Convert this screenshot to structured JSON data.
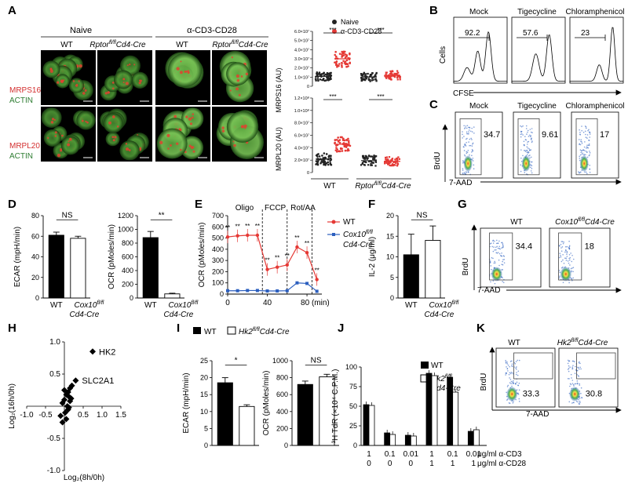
{
  "panels": {
    "A": {
      "label": "A",
      "group_naive": "Naive",
      "group_stim": "α-CD3-CD28",
      "col_wt": "WT",
      "col_rptor": "Rptor",
      "col_rptor_sup": "fl/fl",
      "col_rptor_suffix": "Cd4-Cre",
      "row1_top": "MRPS16",
      "row1_bottom": "ACTIN",
      "row2_top": "MRPL20",
      "row2_bottom": "ACTIN",
      "legend_naive": "Naive",
      "legend_stim": "α-CD3-CD28",
      "ylabel_top": "MRPS16 (AU)",
      "ylabel_bottom": "MRPL20 (AU)",
      "yticks_top": [
        "0",
        "1.0×10⁷",
        "2.0×10⁷",
        "3.0×10⁷",
        "4.0×10⁷",
        "5.0×10⁷",
        "6.0×10⁷"
      ],
      "yticks_bottom": [
        "0",
        "2.0×10⁷",
        "4.0×10⁷",
        "6.0×10⁷",
        "8.0×10⁷",
        "1.0×10⁸",
        "1.2×10⁸"
      ],
      "sig": "***",
      "x_wt": "WT",
      "x_rptor": "Rptor",
      "x_rptor_sup": "fl/fl",
      "x_rptor_suffix": "Cd4-Cre"
    },
    "B": {
      "label": "B",
      "titles": [
        "Mock",
        "Tigecycline",
        "Chloramphenicol"
      ],
      "values": [
        "92.2",
        "57.6",
        "23"
      ],
      "ylabel": "Cells",
      "xlabel": "CFSE"
    },
    "C": {
      "label": "C",
      "titles": [
        "Mock",
        "Tigecycline",
        "Chloramphenicol"
      ],
      "values": [
        "34.7",
        "9.61",
        "17"
      ],
      "ylabel": "BrdU",
      "xlabel": "7-AAD"
    },
    "D": {
      "label": "D",
      "sig1": "NS",
      "sig2": "**",
      "ylabel1": "ECAR (mpH/min)",
      "ylabel2": "OCR (pMoles/min)",
      "yticks1": [
        "0",
        "20",
        "40",
        "60",
        "80"
      ],
      "yticks2": [
        "0",
        "200",
        "400",
        "600",
        "800",
        "1000",
        "1200"
      ],
      "x_wt": "WT",
      "x_ko": "Cox10",
      "x_ko_sup": "fl/fl",
      "x_ko_suffix": "Cd4-Cre"
    },
    "E": {
      "label": "E",
      "inj1": "Oligo",
      "inj2": "FCCP",
      "inj3": "Rot/AA",
      "ylabel": "OCR (pMoles/min)",
      "yticks": [
        "0",
        "100",
        "200",
        "300",
        "400",
        "500",
        "600",
        "700"
      ],
      "xticks": [
        "0",
        "40",
        "80 (min)"
      ],
      "legend_wt": "WT",
      "legend_ko": "Cox10",
      "legend_ko_sup": "fl/fl",
      "legend_ko_suffix": "Cd4-Cre",
      "stars": "**"
    },
    "F": {
      "label": "F",
      "sig": "NS",
      "ylabel": "IL-2 (μg/ml)",
      "yticks": [
        "0",
        "5",
        "10",
        "15",
        "20"
      ],
      "x_wt": "WT",
      "x_ko": "Cox10",
      "x_ko_sup": "fl/fl",
      "x_ko_suffix": "Cd4-Cre"
    },
    "G": {
      "label": "G",
      "title_wt": "WT",
      "title_ko": "Cox10",
      "title_ko_sup": "fl/fl",
      "title_ko_suffix": "Cd4-Cre",
      "values": [
        "34.4",
        "18"
      ],
      "ylabel": "BrdU",
      "xlabel": "7-AAD"
    },
    "H": {
      "label": "H",
      "xlabel": "Log₂(8h/0h)",
      "ylabel": "Log₂(16h/0h)",
      "xticks": [
        "-1.0",
        "-0.5",
        "0.5",
        "1.0",
        "1.5"
      ],
      "yticks": [
        "1.0",
        "0.5",
        "-0.5",
        "-1.0"
      ],
      "annot1": "HK2",
      "annot2": "SLC2A1"
    },
    "I": {
      "label": "I",
      "legend_wt": "WT",
      "legend_ko": "Hk2",
      "legend_ko_sup": "fl/fl",
      "legend_ko_suffix": "Cd4-Cre",
      "sig1": "*",
      "sig2": "NS",
      "ylabel1": "ECAR (mpH/min)",
      "ylabel2": "OCR (pMoles/min)",
      "yticks1": [
        "0",
        "5",
        "10",
        "15",
        "20",
        "25"
      ],
      "yticks2": [
        "0",
        "200",
        "400",
        "600",
        "800",
        "1000"
      ]
    },
    "J": {
      "label": "J",
      "legend_wt": "WT",
      "legend_ko": "Hk2",
      "legend_ko_sup": "fl/fl",
      "legend_ko_suffix": "Cd4-Cre",
      "ylabel": "³H TdR (×10⁴ C.P.M.)",
      "yticks": [
        "0",
        "25",
        "50",
        "75",
        "100"
      ],
      "row1": [
        "1",
        "0.1",
        "0.01",
        "1",
        "0.1",
        "0.01"
      ],
      "row2": [
        "0",
        "0",
        "0",
        "1",
        "1",
        "1"
      ],
      "row1_label": "μg/ml α-CD3",
      "row2_label": "μg/ml α-CD28"
    },
    "K": {
      "label": "K",
      "title_wt": "WT",
      "title_ko": "Hk2",
      "title_ko_sup": "fl/fl",
      "title_ko_suffix": "Cd4-Cre",
      "values": [
        "33.3",
        "30.8"
      ],
      "ylabel": "BrdU",
      "xlabel": "7-AAD"
    }
  },
  "chart_data": [
    {
      "type": "bar",
      "panel": "D-left",
      "categories": [
        "WT",
        "Cox10 fl/fl Cd4-Cre"
      ],
      "values": [
        61,
        58
      ],
      "errors": [
        3,
        2
      ],
      "ylabel": "ECAR (mpH/min)",
      "ylim": [
        0,
        80
      ]
    },
    {
      "type": "bar",
      "panel": "D-right",
      "categories": [
        "WT",
        "Cox10 fl/fl Cd4-Cre"
      ],
      "values": [
        880,
        60
      ],
      "errors": [
        90,
        10
      ],
      "ylabel": "OCR (pMoles/min)",
      "ylim": [
        0,
        1200
      ]
    },
    {
      "type": "line",
      "panel": "E",
      "x": [
        0,
        10,
        20,
        30,
        40,
        50,
        60,
        70,
        80,
        90
      ],
      "series": [
        {
          "name": "WT",
          "values": [
            510,
            520,
            525,
            525,
            220,
            240,
            260,
            420,
            370,
            130
          ]
        },
        {
          "name": "Cox10 fl/fl Cd4-Cre",
          "values": [
            30,
            30,
            32,
            32,
            28,
            28,
            30,
            100,
            95,
            25
          ]
        }
      ],
      "ylabel": "OCR (pMoles/min)",
      "ylim": [
        0,
        700
      ],
      "injections": [
        {
          "x": 35,
          "label": "Oligo"
        },
        {
          "x": 60,
          "label": "FCCP"
        },
        {
          "x": 85,
          "label": "Rot/AA"
        }
      ]
    },
    {
      "type": "bar",
      "panel": "F",
      "categories": [
        "WT",
        "Cox10 fl/fl Cd4-Cre"
      ],
      "values": [
        10.5,
        14
      ],
      "errors": [
        5,
        3.5
      ],
      "ylabel": "IL-2 (μg/ml)",
      "ylim": [
        0,
        20
      ]
    },
    {
      "type": "scatter",
      "panel": "H",
      "x": [
        0.75,
        0.3,
        0.2,
        0.15,
        0.1,
        0.12,
        0.05,
        0.0,
        -0.05,
        0.08,
        0.15,
        0.1,
        0.02,
        -0.1,
        0.05,
        0.12,
        0.18,
        0.0,
        -0.05
      ],
      "y": [
        0.85,
        0.4,
        0.32,
        0.28,
        0.22,
        0.15,
        0.18,
        0.1,
        0.05,
        0.0,
        0.08,
        -0.05,
        -0.1,
        -0.15,
        -0.2,
        -0.02,
        0.12,
        0.25,
        -0.25
      ],
      "xlabel": "Log₂(8h/0h)",
      "ylabel": "Log₂(16h/0h)",
      "xlim": [
        -1.0,
        1.5
      ],
      "ylim": [
        -1.0,
        1.0
      ]
    },
    {
      "type": "bar",
      "panel": "I-left",
      "categories": [
        "WT",
        "Hk2 fl/fl Cd4-Cre"
      ],
      "values": [
        18.5,
        11.5
      ],
      "errors": [
        1.5,
        0.5
      ],
      "ylabel": "ECAR (mpH/min)",
      "ylim": [
        0,
        25
      ]
    },
    {
      "type": "bar",
      "panel": "I-right",
      "categories": [
        "WT",
        "Hk2 fl/fl Cd4-Cre"
      ],
      "values": [
        720,
        810
      ],
      "errors": [
        40,
        30
      ],
      "ylabel": "OCR (pMoles/min)",
      "ylim": [
        0,
        1000
      ]
    },
    {
      "type": "bar",
      "panel": "J",
      "categories": [
        "1/0",
        "0.1/0",
        "0.01/0",
        "1/1",
        "0.1/1",
        "0.01/1"
      ],
      "series": [
        {
          "name": "WT",
          "values": [
            52,
            16,
            13,
            92,
            87,
            18
          ]
        },
        {
          "name": "Hk2 fl/fl Cd4-Cre",
          "values": [
            51,
            14,
            12,
            89,
            68,
            20
          ]
        }
      ],
      "ylabel": "³H TdR (×10⁴ C.P.M.)",
      "ylim": [
        0,
        100
      ]
    }
  ]
}
